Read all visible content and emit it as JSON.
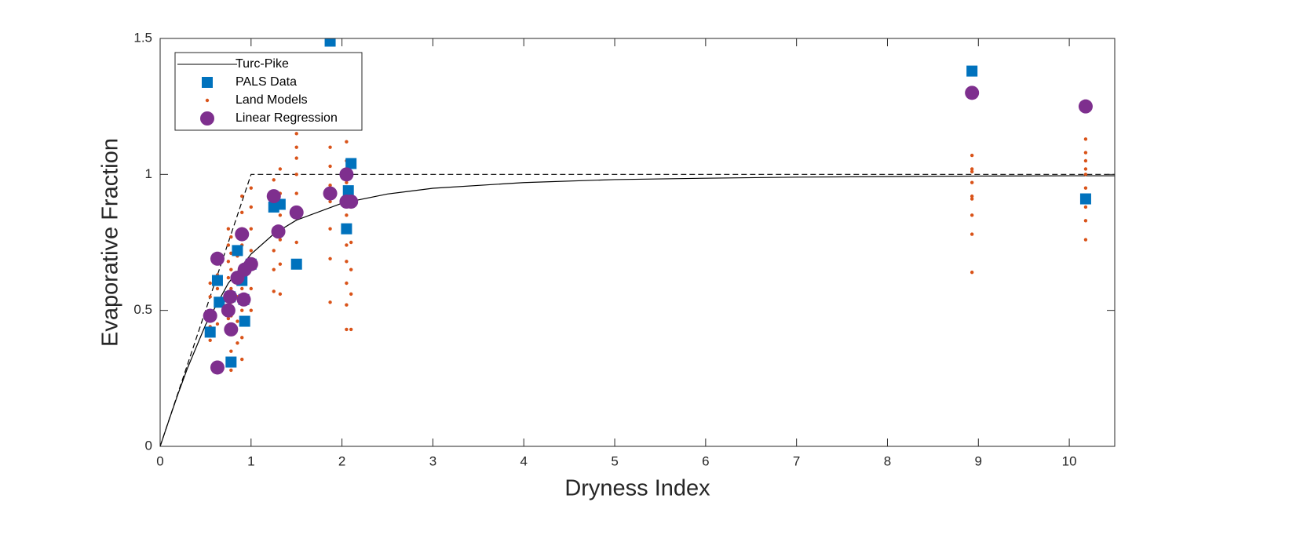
{
  "chart_data": {
    "type": "scatter",
    "xlabel": "Dryness Index",
    "ylabel": "Evaporative Fraction",
    "xlim": [
      0,
      10.5
    ],
    "ylim": [
      0,
      1.5
    ],
    "xticks": [
      0,
      1,
      2,
      3,
      4,
      5,
      6,
      7,
      8,
      9,
      10
    ],
    "yticks": [
      0,
      0.5,
      1,
      1.5
    ],
    "legend": "upper left",
    "series": [
      {
        "name": "Turc-Pike",
        "color": "#000000",
        "marker": "line",
        "linestyle": "solid",
        "x": [
          0,
          0.1,
          0.2,
          0.3,
          0.5,
          0.75,
          1,
          1.25,
          1.5,
          2,
          2.5,
          3,
          4,
          5,
          6,
          7,
          8,
          9,
          10,
          10.5
        ],
        "values": [
          0,
          0.0995,
          0.196,
          0.287,
          0.447,
          0.6,
          0.707,
          0.781,
          0.832,
          0.894,
          0.928,
          0.949,
          0.97,
          0.981,
          0.986,
          0.99,
          0.992,
          0.994,
          0.995,
          0.995
        ]
      },
      {
        "color": "#000000",
        "marker": "line",
        "linestyle": "dashed",
        "x": [
          0,
          1,
          10.5
        ],
        "values": [
          0,
          1,
          1
        ]
      },
      {
        "name": "Land Models",
        "color": "#D95319",
        "marker": "dot",
        "x": [
          0.55,
          0.55,
          0.55,
          0.55,
          0.55,
          0.63,
          0.63,
          0.63,
          0.63,
          0.63,
          0.75,
          0.75,
          0.75,
          0.75,
          0.75,
          0.75,
          0.78,
          0.78,
          0.78,
          0.78,
          0.78,
          0.78,
          0.78,
          0.78,
          0.78,
          0.85,
          0.85,
          0.85,
          0.85,
          0.85,
          0.85,
          0.9,
          0.9,
          0.9,
          0.9,
          0.9,
          0.9,
          0.9,
          0.9,
          0.9,
          1.0,
          1.0,
          1.0,
          1.0,
          1.0,
          1.0,
          1.0,
          1.25,
          1.25,
          1.25,
          1.25,
          1.25,
          1.25,
          1.25,
          1.32,
          1.32,
          1.32,
          1.32,
          1.32,
          1.32,
          1.5,
          1.5,
          1.5,
          1.5,
          1.5,
          1.5,
          1.5,
          1.5,
          1.87,
          1.87,
          1.87,
          1.87,
          1.87,
          1.87,
          1.87,
          2.05,
          2.05,
          2.05,
          2.05,
          2.05,
          2.05,
          2.05,
          2.05,
          2.05,
          2.05,
          2.05,
          2.1,
          2.1,
          2.1,
          2.1,
          2.1,
          8.93,
          8.93,
          8.93,
          8.93,
          8.93,
          8.93,
          8.93,
          8.93,
          8.93,
          10.18,
          10.18,
          10.18,
          10.18,
          10.18,
          10.18,
          10.18,
          10.18,
          10.18,
          10.18
        ],
        "values": [
          0.39,
          0.44,
          0.5,
          0.55,
          0.6,
          0.45,
          0.52,
          0.58,
          0.63,
          0.7,
          0.47,
          0.55,
          0.62,
          0.68,
          0.74,
          0.8,
          0.28,
          0.35,
          0.42,
          0.48,
          0.53,
          0.58,
          0.65,
          0.71,
          0.77,
          0.38,
          0.46,
          0.55,
          0.62,
          0.7,
          0.79,
          0.32,
          0.4,
          0.5,
          0.58,
          0.66,
          0.74,
          0.8,
          0.86,
          0.92,
          0.5,
          0.58,
          0.66,
          0.72,
          0.8,
          0.88,
          0.95,
          0.57,
          0.65,
          0.72,
          0.8,
          0.88,
          0.93,
          0.98,
          0.56,
          0.67,
          0.76,
          0.85,
          0.93,
          1.02,
          0.66,
          0.75,
          0.86,
          0.93,
          1.0,
          1.06,
          1.1,
          1.15,
          0.53,
          0.69,
          0.8,
          0.9,
          0.96,
          1.03,
          1.1,
          0.43,
          0.52,
          0.6,
          0.68,
          0.74,
          0.8,
          0.85,
          0.92,
          0.97,
          1.05,
          1.12,
          0.43,
          0.56,
          0.65,
          0.75,
          0.88,
          0.64,
          0.78,
          0.85,
          0.91,
          0.92,
          0.97,
          1.01,
          1.02,
          1.07,
          0.76,
          0.83,
          0.88,
          0.92,
          0.95,
          1.0,
          1.02,
          1.05,
          1.08,
          1.13
        ]
      },
      {
        "name": "PALS Data",
        "color": "#0072BD",
        "marker": "square",
        "x": [
          0.55,
          0.63,
          0.65,
          0.77,
          0.78,
          0.85,
          0.9,
          0.92,
          0.93,
          1.0,
          1.25,
          1.32,
          1.5,
          1.87,
          2.05,
          2.07,
          2.1,
          8.93,
          10.18
        ],
        "values": [
          0.42,
          0.61,
          0.53,
          0.55,
          0.31,
          0.72,
          0.61,
          0.54,
          0.46,
          0.67,
          0.88,
          0.89,
          0.67,
          1.49,
          0.8,
          0.94,
          1.04,
          1.38,
          0.91
        ]
      },
      {
        "name": "Linear Regression",
        "color": "#7E2F8E",
        "marker": "circle",
        "x": [
          0.55,
          0.63,
          0.63,
          0.75,
          0.77,
          0.78,
          0.85,
          0.9,
          0.92,
          0.93,
          1.0,
          1.25,
          1.3,
          1.5,
          1.87,
          2.05,
          2.05,
          2.1,
          8.93,
          10.18
        ],
        "values": [
          0.48,
          0.69,
          0.29,
          0.5,
          0.55,
          0.43,
          0.62,
          0.78,
          0.54,
          0.65,
          0.67,
          0.92,
          0.79,
          0.86,
          0.93,
          1.0,
          0.9,
          0.9,
          1.3,
          1.25
        ]
      }
    ]
  }
}
